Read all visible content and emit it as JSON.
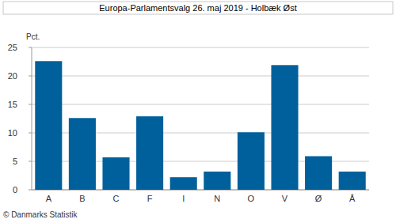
{
  "chart_data": {
    "type": "bar",
    "title": "Europa-Parlamentsvalg 26. maj 2019 - Holbæk Øst",
    "y_label": "Pct.",
    "categories": [
      "A",
      "B",
      "C",
      "F",
      "I",
      "N",
      "O",
      "V",
      "Ø",
      "Å"
    ],
    "values": [
      22.6,
      12.6,
      5.7,
      12.9,
      2.2,
      3.2,
      10.1,
      21.9,
      5.9,
      3.2
    ],
    "color": "#00609c",
    "ylim": [
      0,
      25
    ],
    "yticks": [
      0,
      5,
      10,
      15,
      20,
      25
    ],
    "grid": true,
    "annotations": [
      {
        "text": "© Danmarks Statistik"
      }
    ]
  }
}
